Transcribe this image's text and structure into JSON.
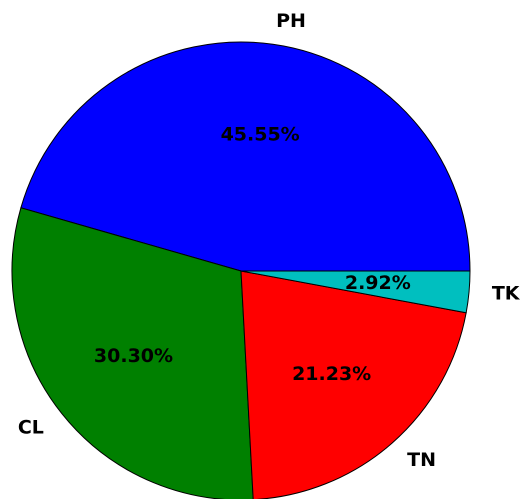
{
  "chart_data": {
    "type": "pie",
    "categories": [
      "PH",
      "CL",
      "TN",
      "TK"
    ],
    "values": [
      45.55,
      30.3,
      21.23,
      2.92
    ],
    "value_labels": [
      "45.55%",
      "30.30%",
      "21.23%",
      "2.92%"
    ],
    "colors": [
      "#0000ff",
      "#008000",
      "#ff0000",
      "#00bfbf"
    ],
    "start_angle": 0
  }
}
